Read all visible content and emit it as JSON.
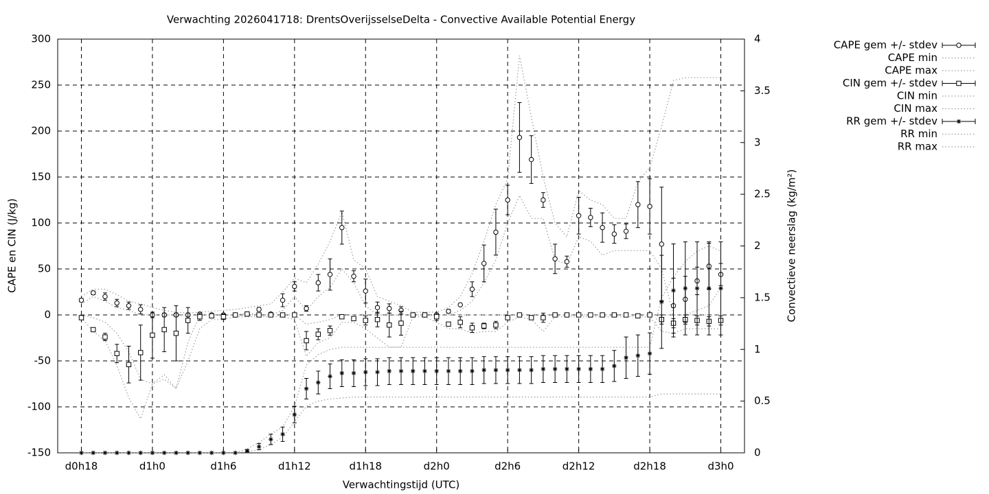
{
  "chart_data": {
    "type": "errorbar",
    "title": "Verwachting 2026041718: DrentsOverijsselseDelta - Convective Available Potential Energy",
    "x_label": "Verwachtingstijd (UTC)",
    "y_label": "CAPE en CIN (J/kg)",
    "y2_label": "Convectieve neerslag (kg/m²)",
    "x": [
      18,
      19,
      20,
      21,
      22,
      23,
      24,
      25,
      26,
      27,
      28,
      29,
      30,
      31,
      32,
      33,
      34,
      35,
      36,
      37,
      38,
      39,
      40,
      41,
      42,
      43,
      44,
      45,
      46,
      47,
      48,
      49,
      50,
      51,
      52,
      53,
      54,
      55,
      56,
      57,
      58,
      59,
      60,
      61,
      62,
      63,
      64,
      65,
      66,
      67,
      68,
      69,
      70,
      71,
      72
    ],
    "xlim": [
      16,
      74
    ],
    "xticks": [
      {
        "value": 18,
        "label": "d0h18"
      },
      {
        "value": 24,
        "label": "d1h0"
      },
      {
        "value": 30,
        "label": "d1h6"
      },
      {
        "value": 36,
        "label": "d1h12"
      },
      {
        "value": 42,
        "label": "d1h18"
      },
      {
        "value": 48,
        "label": "d2h0"
      },
      {
        "value": 54,
        "label": "d2h6"
      },
      {
        "value": 60,
        "label": "d2h12"
      },
      {
        "value": 66,
        "label": "d2h18"
      },
      {
        "value": 72,
        "label": "d3h0"
      }
    ],
    "ylim": [
      -150,
      300
    ],
    "yticks": [
      -150,
      -100,
      -50,
      0,
      50,
      100,
      150,
      200,
      250,
      300
    ],
    "y2lim": [
      0,
      4
    ],
    "y2ticks": [
      0,
      0.5,
      1,
      1.5,
      2,
      2.5,
      3,
      3.5,
      4
    ],
    "grid": true,
    "legend": "outside-right",
    "series": [
      {
        "name": "CAPE gem +/- stdev",
        "color": "#000000",
        "style": "errorbar",
        "marker": "circle",
        "axis": "y",
        "values": [
          16,
          24,
          20,
          13,
          10,
          6,
          0,
          0,
          0,
          0,
          1,
          0,
          0,
          0,
          1,
          6,
          1,
          16,
          31,
          7,
          35,
          44,
          95,
          42,
          26,
          8,
          7,
          5,
          0,
          0,
          0,
          4,
          11,
          28,
          56,
          90,
          125,
          193,
          169,
          125,
          61,
          58,
          108,
          106,
          95,
          88,
          91,
          120,
          118,
          77,
          10,
          17,
          37,
          53,
          44
        ],
        "errors": [
          2,
          2,
          4,
          4,
          4,
          5,
          3,
          2,
          2,
          2,
          1,
          1,
          1,
          1,
          2,
          2,
          1,
          7,
          5,
          3,
          9,
          17,
          18,
          6,
          13,
          6,
          5,
          4,
          1,
          1,
          1,
          2,
          1,
          8,
          20,
          25,
          16,
          38,
          26,
          8,
          16,
          6,
          20,
          10,
          16,
          10,
          8,
          25,
          30,
          62,
          30,
          25,
          15,
          25,
          12
        ]
      },
      {
        "name": "CAPE min",
        "color": "#999999",
        "style": "dotted",
        "axis": "y",
        "values": [
          12,
          20,
          15,
          8,
          5,
          0,
          0,
          0,
          0,
          0,
          0,
          0,
          0,
          0,
          0,
          0,
          0,
          5,
          20,
          5,
          20,
          30,
          50,
          35,
          10,
          0,
          0,
          0,
          0,
          0,
          0,
          0,
          5,
          15,
          35,
          60,
          100,
          130,
          105,
          105,
          60,
          55,
          85,
          80,
          65,
          70,
          70,
          70,
          70,
          50,
          0,
          0,
          5,
          10,
          30
        ]
      },
      {
        "name": "CAPE max",
        "color": "#999999",
        "style": "dotted",
        "axis": "y",
        "values": [
          20,
          28,
          28,
          22,
          15,
          12,
          8,
          5,
          3,
          2,
          3,
          4,
          5,
          6,
          8,
          10,
          12,
          25,
          40,
          35,
          55,
          80,
          112,
          60,
          50,
          20,
          15,
          10,
          3,
          3,
          3,
          8,
          20,
          45,
          80,
          120,
          148,
          282,
          215,
          150,
          100,
          85,
          135,
          125,
          120,
          105,
          105,
          145,
          160,
          205,
          255,
          258,
          258,
          258,
          258
        ]
      },
      {
        "name": "CIN gem +/- stdev",
        "color": "#000000",
        "style": "errorbar",
        "marker": "square",
        "axis": "y",
        "values": [
          -3,
          -16,
          -24,
          -42,
          -54,
          -41,
          -22,
          -16,
          -20,
          -6,
          -2,
          -1,
          -2,
          0,
          1,
          0,
          0,
          0,
          0,
          -28,
          -21,
          -17,
          -2,
          -4,
          -6,
          -5,
          -11,
          -9,
          0,
          0,
          -2,
          -10,
          -8,
          -14,
          -12,
          -11,
          -3,
          0,
          -3,
          -3,
          0,
          0,
          0,
          0,
          0,
          0,
          0,
          -1,
          0,
          -5,
          -9,
          -5,
          -6,
          -7,
          -6
        ],
        "errors": [
          1,
          1,
          4,
          10,
          20,
          30,
          25,
          24,
          30,
          14,
          4,
          1,
          3,
          1,
          2,
          1,
          1,
          1,
          1,
          10,
          6,
          5,
          2,
          2,
          5,
          8,
          13,
          13,
          1,
          1,
          4,
          2,
          6,
          5,
          3,
          4,
          2,
          1,
          1,
          5,
          1,
          1,
          1,
          1,
          1,
          1,
          1,
          1,
          1,
          5,
          5,
          5,
          5,
          5,
          5
        ]
      },
      {
        "name": "CIN min",
        "color": "#999999",
        "style": "dotted",
        "axis": "y",
        "values": [
          -3,
          -18,
          -28,
          -55,
          -90,
          -113,
          -75,
          -70,
          -80,
          -50,
          -15,
          -5,
          -5,
          -2,
          -2,
          -2,
          -2,
          -2,
          -5,
          -45,
          -30,
          -25,
          -8,
          -8,
          -15,
          -25,
          -35,
          -35,
          -2,
          -2,
          -8,
          -15,
          -15,
          -20,
          -18,
          -18,
          -8,
          -2,
          -5,
          -18,
          -2,
          -2,
          -2,
          -2,
          -2,
          -2,
          -2,
          -2,
          -2,
          -18,
          -20,
          -15,
          -15,
          -15,
          -15
        ]
      },
      {
        "name": "CIN max",
        "color": "#999999",
        "style": "dotted",
        "axis": "y",
        "values": [
          0,
          -3,
          -8,
          -20,
          -40,
          -70,
          -75,
          -65,
          -80,
          -30,
          0,
          0,
          0,
          0,
          2,
          0,
          0,
          0,
          0,
          -10,
          -8,
          -5,
          0,
          0,
          0,
          0,
          0,
          0,
          0,
          0,
          0,
          0,
          0,
          0,
          0,
          0,
          0,
          0,
          0,
          0,
          0,
          0,
          0,
          0,
          0,
          0,
          0,
          0,
          0,
          0,
          0,
          0,
          0,
          0,
          0
        ]
      },
      {
        "name": "RR gem +/- stdev",
        "color": "#000000",
        "style": "errorbar",
        "marker": "star",
        "axis": "y2",
        "values": [
          0,
          0,
          0,
          0,
          0,
          0,
          0,
          0,
          0,
          0,
          0,
          0,
          0,
          0,
          0.02,
          0.06,
          0.13,
          0.18,
          0.37,
          0.62,
          0.68,
          0.74,
          0.77,
          0.77,
          0.78,
          0.78,
          0.79,
          0.79,
          0.79,
          0.79,
          0.79,
          0.79,
          0.79,
          0.79,
          0.8,
          0.8,
          0.8,
          0.8,
          0.8,
          0.81,
          0.81,
          0.81,
          0.81,
          0.81,
          0.81,
          0.84,
          0.92,
          0.94,
          0.96,
          1.46,
          1.57,
          1.59,
          1.59,
          1.59,
          1.59
        ],
        "errors": [
          0,
          0,
          0,
          0,
          0,
          0,
          0,
          0,
          0,
          0,
          0,
          0,
          0,
          0,
          0.01,
          0.03,
          0.05,
          0.07,
          0.08,
          0.1,
          0.11,
          0.12,
          0.13,
          0.13,
          0.13,
          0.13,
          0.13,
          0.13,
          0.13,
          0.13,
          0.13,
          0.13,
          0.13,
          0.13,
          0.13,
          0.13,
          0.13,
          0.13,
          0.13,
          0.13,
          0.13,
          0.13,
          0.13,
          0.13,
          0.13,
          0.15,
          0.2,
          0.2,
          0.2,
          0.45,
          0.45,
          0.45,
          0.45,
          0.45,
          0.45
        ]
      },
      {
        "name": "RR min",
        "color": "#999999",
        "style": "dotted",
        "axis": "y2",
        "values": [
          0,
          0,
          0,
          0,
          0,
          0,
          0,
          0,
          0,
          0,
          0,
          0,
          0,
          0,
          0.01,
          0.03,
          0.08,
          0.15,
          0.3,
          0.45,
          0.5,
          0.52,
          0.53,
          0.54,
          0.54,
          0.54,
          0.54,
          0.54,
          0.54,
          0.54,
          0.54,
          0.54,
          0.54,
          0.54,
          0.54,
          0.54,
          0.54,
          0.54,
          0.54,
          0.54,
          0.54,
          0.54,
          0.54,
          0.54,
          0.54,
          0.54,
          0.54,
          0.54,
          0.54,
          0.57,
          0.57,
          0.57,
          0.57,
          0.57,
          0.57
        ]
      },
      {
        "name": "RR max",
        "color": "#999999",
        "style": "dotted",
        "axis": "y2",
        "values": [
          0,
          0,
          0,
          0,
          0,
          0,
          0,
          0,
          0,
          0,
          0,
          0,
          0,
          0,
          0.04,
          0.1,
          0.18,
          0.25,
          0.45,
          0.85,
          0.95,
          1.0,
          1.02,
          1.02,
          1.02,
          1.02,
          1.02,
          1.02,
          1.02,
          1.02,
          1.02,
          1.02,
          1.02,
          1.02,
          1.02,
          1.02,
          1.02,
          1.02,
          1.02,
          1.02,
          1.02,
          1.02,
          1.02,
          1.02,
          1.02,
          1.02,
          1.02,
          1.02,
          1.02,
          1.5,
          1.7,
          1.85,
          1.95,
          2.0,
          1.95
        ]
      }
    ]
  }
}
